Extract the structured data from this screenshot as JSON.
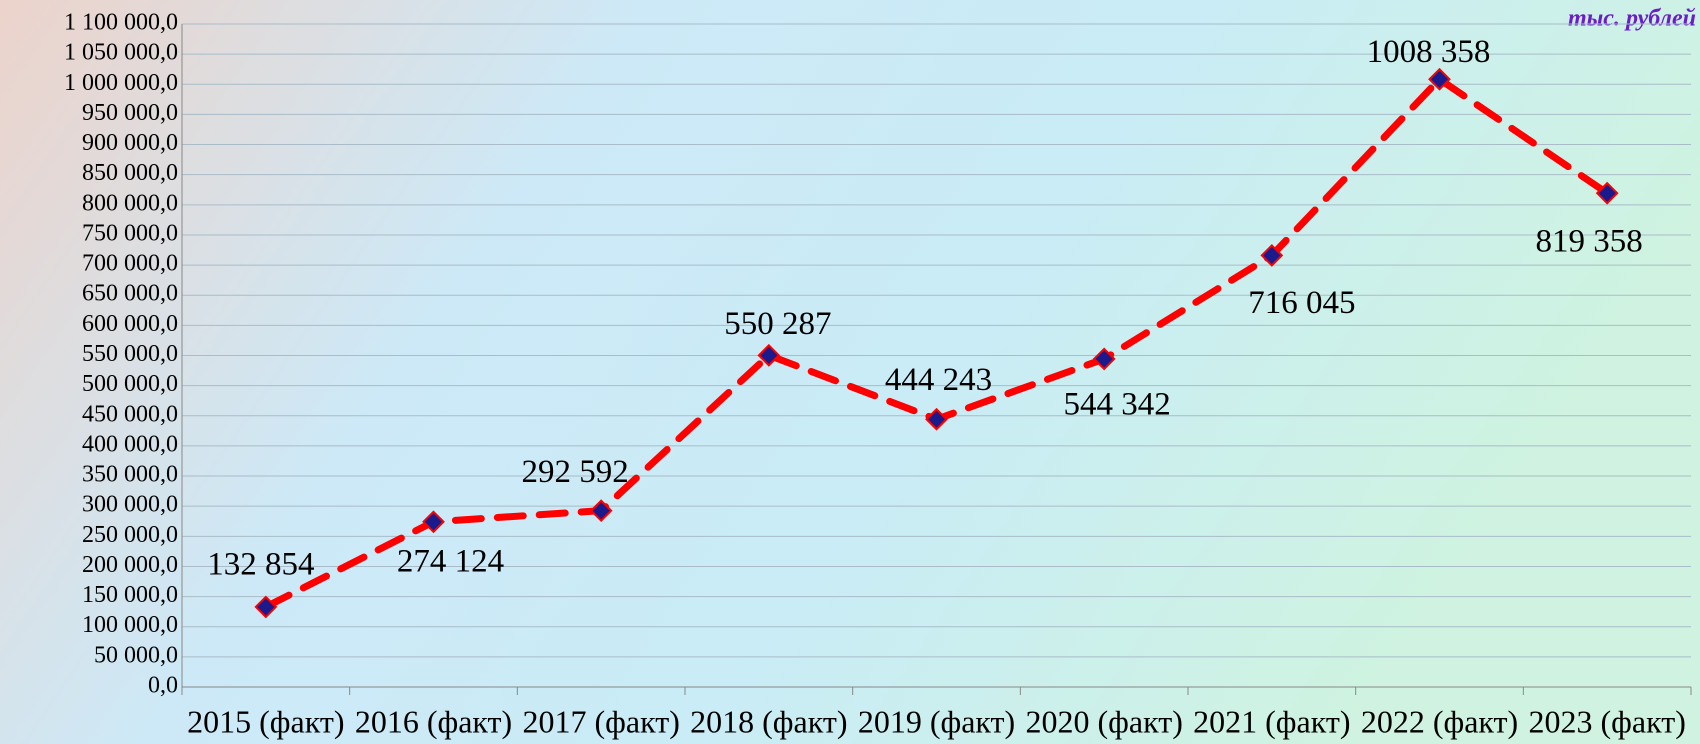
{
  "chart_data": {
    "type": "line",
    "annotation": "тыс. рублей",
    "categories": [
      "2015 (факт)",
      "2016 (факт)",
      "2017 (факт)",
      "2018 (факт)",
      "2019 (факт)",
      "2020 (факт)",
      "2021 (факт)",
      "2022 (факт)",
      "2023 (факт)"
    ],
    "series": [
      {
        "color": "#ff0000",
        "marker_color": "#1a1a8c",
        "values": [
          132854,
          274124,
          292592,
          550287,
          444243,
          544342,
          716045,
          1008358,
          819358
        ],
        "value_labels": [
          "132 854",
          "274 124",
          "292 592",
          "550 287",
          "444 243",
          "544 342",
          "716 045",
          "1008 358",
          "819 358"
        ]
      }
    ],
    "ylim": [
      0,
      1100000
    ],
    "yticks": [
      {
        "value": 0,
        "label": "0,0"
      },
      {
        "value": 50000,
        "label": "50 000,0"
      },
      {
        "value": 100000,
        "label": "100 000,0"
      },
      {
        "value": 150000,
        "label": "150 000,0"
      },
      {
        "value": 200000,
        "label": "200 000,0"
      },
      {
        "value": 250000,
        "label": "250 000,0"
      },
      {
        "value": 300000,
        "label": "300 000,0"
      },
      {
        "value": 350000,
        "label": "350 000,0"
      },
      {
        "value": 400000,
        "label": "400 000,0"
      },
      {
        "value": 450000,
        "label": "450 000,0"
      },
      {
        "value": 500000,
        "label": "500 000,0"
      },
      {
        "value": 550000,
        "label": "550 000,0"
      },
      {
        "value": 600000,
        "label": "600 000,0"
      },
      {
        "value": 650000,
        "label": "650 000,0"
      },
      {
        "value": 700000,
        "label": "700 000,0"
      },
      {
        "value": 750000,
        "label": "750 000,0"
      },
      {
        "value": 800000,
        "label": "800 000,0"
      },
      {
        "value": 850000,
        "label": "850 000,0"
      },
      {
        "value": 900000,
        "label": "900 000,0"
      },
      {
        "value": 950000,
        "label": "950 000,0"
      },
      {
        "value": 1000000,
        "label": "1 000 000,0"
      },
      {
        "value": 1050000,
        "label": "1 050 000,0"
      },
      {
        "value": 1100000,
        "label": "1 100 000,0"
      }
    ],
    "grid": true
  }
}
